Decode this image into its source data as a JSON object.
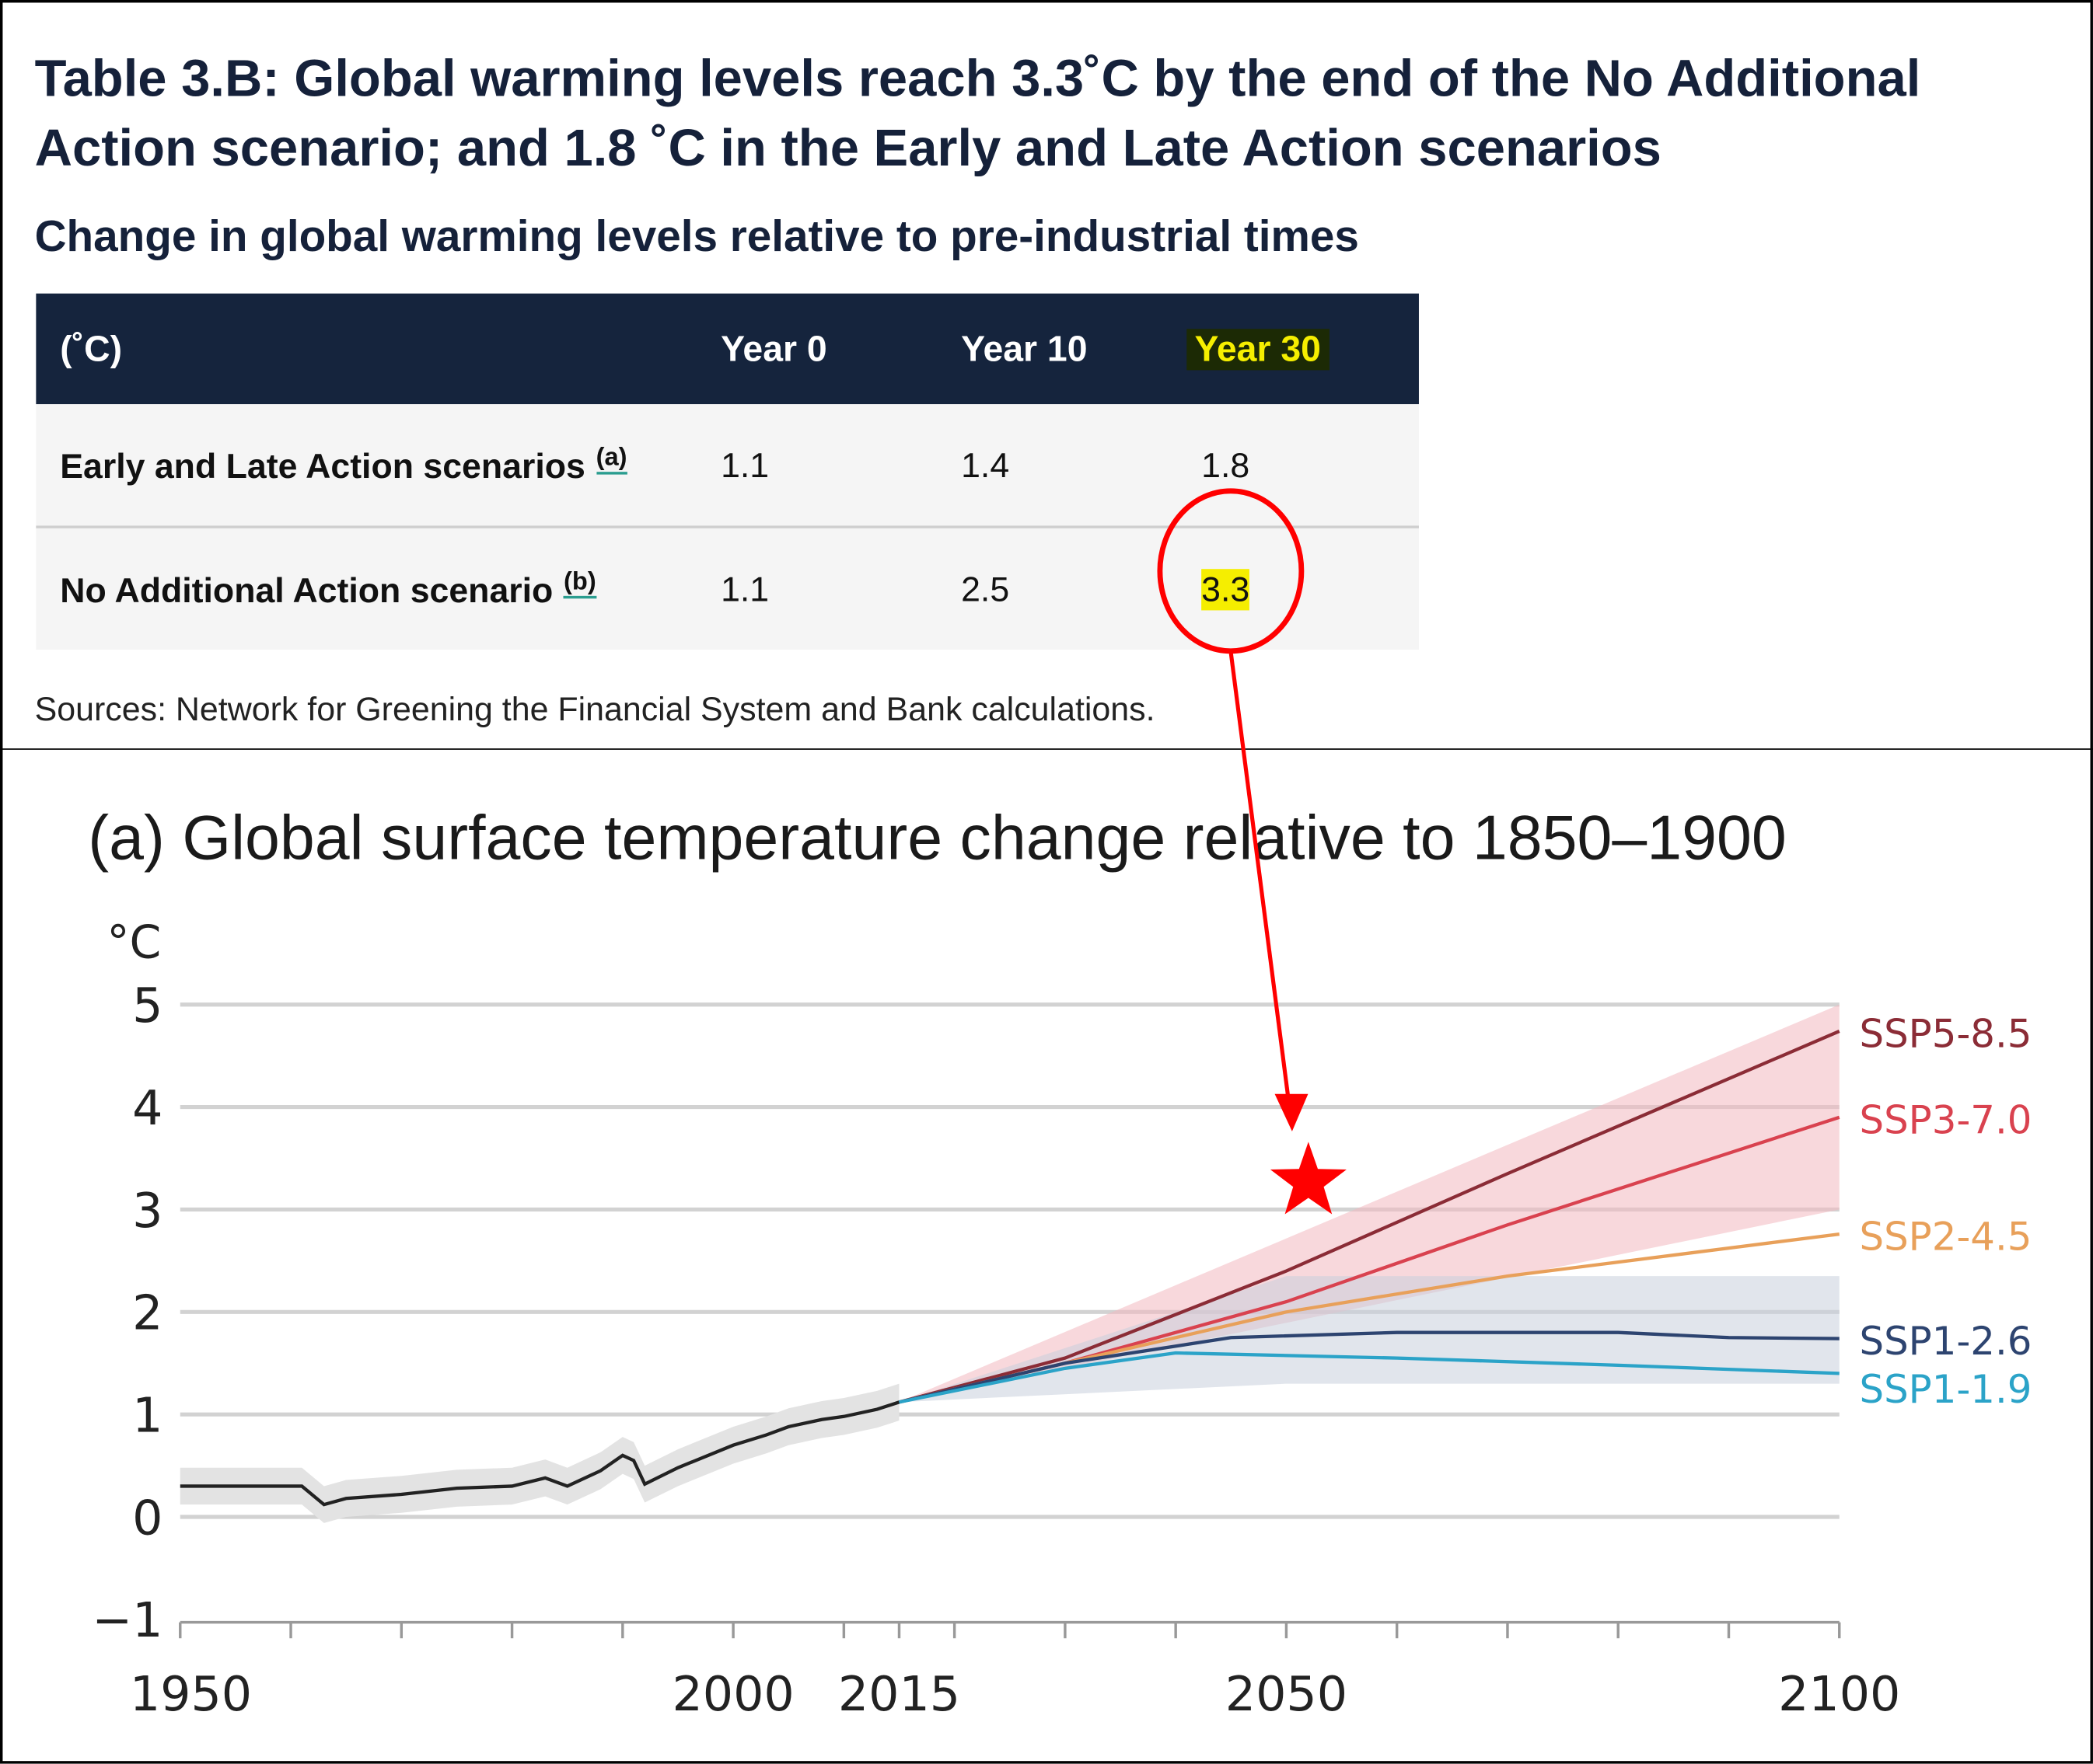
{
  "table": {
    "title": "Table 3.B: Global warming levels reach 3.3˚C by the end of the No Additional Action scenario; and 1.8 ˚C in the Early and Late Action scenarios",
    "subtitle": "Change in global warming levels relative to pre-industrial times",
    "headers": [
      "(˚C)",
      "Year 0",
      "Year 10",
      "Year 30"
    ],
    "rows": [
      {
        "label": "Early and Late Action scenarios",
        "note": "(a)",
        "values": [
          "1.1",
          "1.4",
          "1.8"
        ]
      },
      {
        "label": "No Additional Action scenario",
        "note": "(b)",
        "values": [
          "1.1",
          "2.5",
          "3.3"
        ]
      }
    ],
    "source": "Sources: Network for Greening the Financial System and Bank calculations.",
    "highlight_color": "#f5ee00",
    "header_color": "#15243d"
  },
  "chart_data": {
    "type": "line",
    "title": "(a) Global surface temperature change relative to 1850–1900",
    "ylabel": "°C",
    "xlim": [
      1950,
      2100
    ],
    "ylim": [
      -1,
      5
    ],
    "yticks": [
      -1,
      0,
      1,
      2,
      3,
      4,
      5
    ],
    "xtick_labels": [
      1950,
      2000,
      2015,
      2050,
      2100
    ],
    "grid": true,
    "historical": {
      "x": [
        1950,
        1955,
        1961,
        1963,
        1965,
        1970,
        1975,
        1980,
        1983,
        1985,
        1988,
        1990,
        1991,
        1992,
        1995,
        2000,
        2003,
        2005,
        2008,
        2010,
        2013,
        2015
      ],
      "y": [
        0.3,
        0.3,
        0.3,
        0.12,
        0.18,
        0.22,
        0.28,
        0.3,
        0.38,
        0.3,
        0.45,
        0.6,
        0.55,
        0.32,
        0.48,
        0.7,
        0.8,
        0.88,
        0.95,
        0.98,
        1.05,
        1.12
      ]
    },
    "series": [
      {
        "name": "SSP5-8.5",
        "color": "#8b2c36",
        "x": [
          2015,
          2030,
          2050,
          2070,
          2100
        ],
        "y": [
          1.12,
          1.55,
          2.4,
          3.35,
          4.74
        ]
      },
      {
        "name": "SSP3-7.0",
        "color": "#d9424f",
        "x": [
          2015,
          2030,
          2050,
          2070,
          2100
        ],
        "y": [
          1.12,
          1.5,
          2.1,
          2.85,
          3.9
        ]
      },
      {
        "name": "SSP2-4.5",
        "color": "#e8a05a",
        "x": [
          2015,
          2030,
          2050,
          2070,
          2100
        ],
        "y": [
          1.12,
          1.5,
          2.0,
          2.35,
          2.76
        ]
      },
      {
        "name": "SSP1-2.6",
        "color": "#2d4470",
        "x": [
          2015,
          2030,
          2045,
          2060,
          2080,
          2090,
          2100
        ],
        "y": [
          1.12,
          1.5,
          1.75,
          1.8,
          1.8,
          1.75,
          1.74
        ]
      },
      {
        "name": "SSP1-1.9",
        "color": "#2ba3c8",
        "x": [
          2015,
          2030,
          2040,
          2060,
          2080,
          2100
        ],
        "y": [
          1.12,
          1.45,
          1.6,
          1.55,
          1.48,
          1.4
        ]
      }
    ],
    "bands": [
      {
        "name": "high-range",
        "color": "#f2b8c0",
        "x": [
          2015,
          2100
        ],
        "lower": [
          1.12,
          3.0
        ],
        "upper": [
          1.12,
          5.0
        ]
      },
      {
        "name": "low-range",
        "color": "#c9d0dc",
        "x": [
          2015,
          2050,
          2100
        ],
        "lower": [
          1.12,
          1.3,
          1.3
        ],
        "upper": [
          1.12,
          2.35,
          2.35
        ]
      }
    ],
    "annotations": {
      "star": {
        "x": 2052,
        "y": 3.27,
        "color": "#ff0000"
      },
      "marker_color": "#ff0000"
    }
  }
}
